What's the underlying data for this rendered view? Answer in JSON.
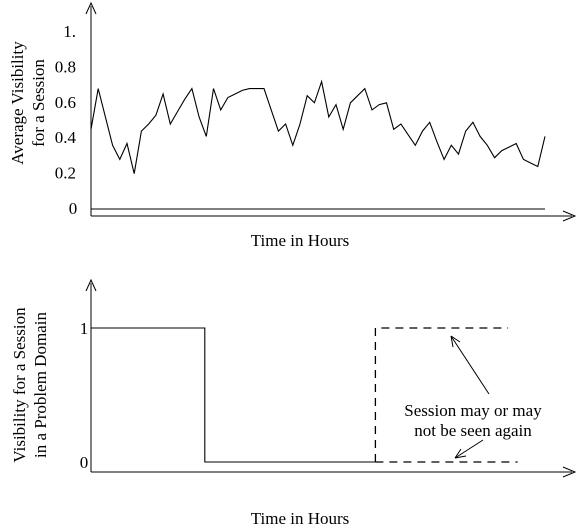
{
  "chart_data": [
    {
      "type": "line",
      "title": "",
      "xlabel": "Time in Hours",
      "ylabel_lines": [
        "Average Visibility",
        "for a Session"
      ],
      "ylim": [
        0,
        1.0
      ],
      "y_ticks": [
        {
          "value": 0,
          "label": "0"
        },
        {
          "value": 0.2,
          "label": "0.2"
        },
        {
          "value": 0.4,
          "label": "0.4"
        },
        {
          "value": 0.6,
          "label": "0.6"
        },
        {
          "value": 0.8,
          "label": "0.8"
        },
        {
          "value": 1.0,
          "label": "1."
        }
      ],
      "grid": false,
      "series": [
        {
          "values": [
            0.45,
            0.68,
            0.52,
            0.36,
            0.28,
            0.37,
            0.2,
            0.44,
            0.48,
            0.53,
            0.65,
            0.48,
            0.55,
            0.62,
            0.68,
            0.52,
            0.41,
            0.68,
            0.56,
            0.63,
            0.65,
            0.67,
            0.68,
            0.68,
            0.68,
            0.56,
            0.44,
            0.48,
            0.36,
            0.48,
            0.64,
            0.6,
            0.72,
            0.52,
            0.59,
            0.45,
            0.6,
            0.64,
            0.68,
            0.56,
            0.59,
            0.6,
            0.45,
            0.48,
            0.42,
            0.36,
            0.44,
            0.49,
            0.38,
            0.28,
            0.36,
            0.31,
            0.44,
            0.49,
            0.41,
            0.36,
            0.29,
            0.33,
            0.35,
            0.37,
            0.28,
            0.26,
            0.24,
            0.41
          ]
        },
        {
          "values": [
            0,
            0
          ]
        }
      ]
    },
    {
      "type": "line",
      "title": "",
      "xlabel": "Time in Hours",
      "ylabel_lines": [
        "Visibility for a Session",
        "in a Problem Domain"
      ],
      "ylim": [
        0,
        1
      ],
      "y_ticks": [
        {
          "value": 0,
          "label": "0"
        },
        {
          "value": 1,
          "label": "1"
        }
      ],
      "grid": false,
      "series": [
        {
          "style": "solid",
          "points": [
            [
              0,
              1
            ],
            [
              0.24,
              1
            ],
            [
              0.24,
              0
            ],
            [
              0.6,
              0
            ]
          ]
        },
        {
          "style": "dashed",
          "points": [
            [
              0.6,
              0
            ],
            [
              0.6,
              1
            ],
            [
              0.88,
              1
            ]
          ]
        },
        {
          "style": "dashed",
          "points": [
            [
              0.6,
              0
            ],
            [
              0.9,
              0
            ]
          ]
        }
      ],
      "annotation": {
        "lines": [
          "Session may or may",
          "not be seen again"
        ]
      }
    }
  ]
}
